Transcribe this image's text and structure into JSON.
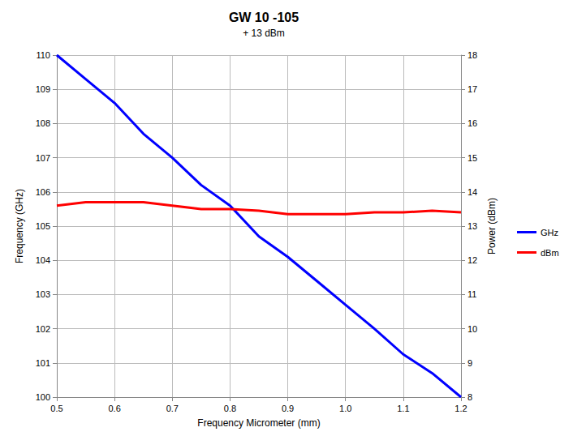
{
  "chart_data": {
    "type": "line",
    "title": "GW 10 -105",
    "subtitle": "+ 13 dBm",
    "xlabel": "Frequency Micrometer (mm)",
    "ylabel": "Frequency (GHz)",
    "y2label": "Power (dBm)",
    "x": [
      0.5,
      0.55,
      0.6,
      0.65,
      0.7,
      0.75,
      0.8,
      0.85,
      0.9,
      0.95,
      1.0,
      1.05,
      1.1,
      1.15,
      1.2
    ],
    "series": [
      {
        "name": "GHz",
        "color": "#0000ff",
        "axis": "y",
        "values": [
          110.0,
          109.3,
          108.6,
          107.7,
          107.0,
          106.2,
          105.6,
          104.7,
          104.1,
          103.4,
          102.7,
          102.0,
          101.25,
          100.7,
          100.0
        ]
      },
      {
        "name": "dBm",
        "color": "#ff0000",
        "axis": "y2",
        "values": [
          13.6,
          13.7,
          13.7,
          13.7,
          13.6,
          13.5,
          13.5,
          13.45,
          13.35,
          13.35,
          13.35,
          13.4,
          13.4,
          13.45,
          13.4
        ]
      }
    ],
    "xlim": [
      0.5,
      1.2
    ],
    "xticks": [
      0.5,
      0.6,
      0.7,
      0.8,
      0.9,
      {
        "value": 1,
        "label": "1.0"
      },
      1.1,
      1.2
    ],
    "ylim": [
      100,
      110
    ],
    "yticks": [
      100,
      101,
      102,
      103,
      104,
      105,
      106,
      107,
      108,
      109,
      110
    ],
    "y2lim": [
      8,
      18
    ],
    "y2ticks": [
      8,
      9,
      10,
      11,
      12,
      13,
      14,
      15,
      16,
      17,
      18
    ],
    "grid": true,
    "legend": "right"
  }
}
